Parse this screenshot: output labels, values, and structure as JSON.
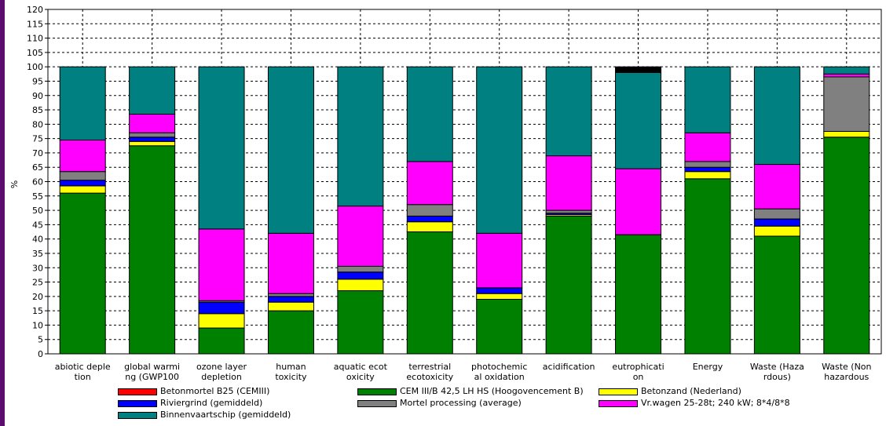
{
  "chart_data": {
    "type": "bar",
    "stacked": true,
    "ylabel": "%",
    "ylim": [
      0,
      120
    ],
    "ytick_step": 5,
    "grid": true,
    "legend_position": "bottom",
    "categories": [
      [
        "abiotic deple",
        "tion"
      ],
      [
        "global warmi",
        "ng (GWP100"
      ],
      [
        "ozone layer",
        "depletion"
      ],
      [
        "human",
        "toxicity"
      ],
      [
        "aquatic ecot",
        "oxicity"
      ],
      [
        "terrestrial",
        "ecotoxicity"
      ],
      [
        "photochemic",
        "al oxidation"
      ],
      [
        "acidification"
      ],
      [
        "eutrophicati",
        "on"
      ],
      [
        "Energy"
      ],
      [
        "Waste (Haza",
        "rdous)"
      ],
      [
        "Waste (Non",
        "hazardous"
      ]
    ],
    "series": [
      {
        "name": "Betonmortel B25 (CEMIII)",
        "color": "#ff0000",
        "values": [
          0,
          0,
          0,
          0,
          0,
          0,
          0,
          0,
          0,
          0,
          0,
          0
        ]
      },
      {
        "name": "CEM III/B 42,5 LH HS (Hoogovencement B)",
        "color": "#008000",
        "values": [
          56,
          72.5,
          9,
          15,
          22,
          42.5,
          19,
          48,
          41.5,
          61,
          41,
          75.5
        ]
      },
      {
        "name": "Betonzand (Nederland)",
        "color": "#ffff00",
        "values": [
          2.5,
          1.5,
          5,
          3,
          4,
          3.5,
          2,
          0.5,
          0,
          2.5,
          3.5,
          2
        ]
      },
      {
        "name": "Riviergrind (gemiddeld)",
        "color": "#0000ff",
        "values": [
          2,
          1.5,
          4,
          2,
          2.5,
          2,
          2,
          0.5,
          0,
          1.5,
          2.5,
          0
        ]
      },
      {
        "name": "Mortel processing (average)",
        "color": "#808080",
        "values": [
          3,
          1.5,
          0.5,
          1,
          2,
          4,
          0,
          1,
          0,
          2,
          3.5,
          19
        ]
      },
      {
        "name": "Vr.wagen 25-28t; 240 kW; 8*4/8*8",
        "color": "#ff00ff",
        "values": [
          11,
          6.5,
          25,
          21,
          21,
          15,
          19,
          19,
          23,
          10,
          15.5,
          1
        ]
      },
      {
        "name": "Binnenvaartschip (gemiddeld)",
        "color": "#008080",
        "values": [
          25.5,
          16.5,
          56.5,
          58,
          48.5,
          33,
          58,
          31,
          33.5,
          23,
          34,
          2.5
        ]
      },
      {
        "name": "",
        "color": "#000000",
        "values": [
          0,
          0,
          0,
          0,
          0,
          0,
          0,
          0,
          2,
          0,
          0,
          0
        ]
      }
    ],
    "legend": [
      {
        "name": "Betonmortel B25 (CEMIII)",
        "color": "#ff0000"
      },
      {
        "name": "CEM III/B 42,5 LH HS (Hoogovencement B)",
        "color": "#008000"
      },
      {
        "name": "Betonzand (Nederland)",
        "color": "#ffff00"
      },
      {
        "name": "Riviergrind (gemiddeld)",
        "color": "#0000ff"
      },
      {
        "name": "Mortel processing (average)",
        "color": "#808080"
      },
      {
        "name": "Vr.wagen 25-28t; 240 kW; 8*4/8*8",
        "color": "#ff00ff"
      },
      {
        "name": "Binnenvaartschip (gemiddeld)",
        "color": "#008080"
      }
    ]
  }
}
